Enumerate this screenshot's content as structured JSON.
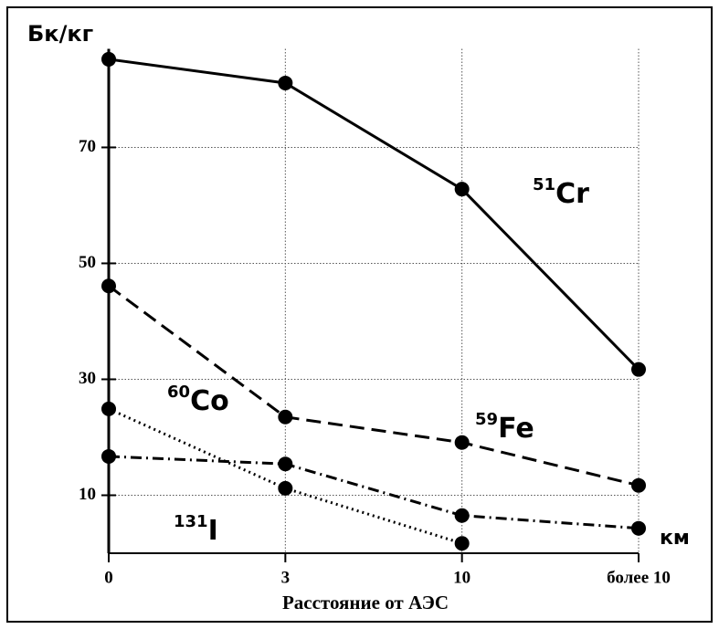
{
  "chart_data": {
    "type": "line",
    "y_label": "Бк/кг",
    "x_label": "Расстояние от АЭС",
    "x_unit": "км",
    "categories": [
      "0",
      "3",
      "10",
      "более 10"
    ],
    "ylim": [
      0,
      87
    ],
    "yticks": [
      10,
      30,
      50,
      70
    ],
    "grid": true,
    "series": [
      {
        "mass": "51",
        "element": "Cr",
        "style": "solid",
        "color": "#000000",
        "values": [
          85.2,
          81.1,
          62.8,
          31.7
        ]
      },
      {
        "mass": "59",
        "element": "Fe",
        "style": "dashed",
        "color": "#000000",
        "values": [
          46.1,
          23.5,
          19.1,
          11.7
        ]
      },
      {
        "mass": "60",
        "element": "Co",
        "style": "dotted",
        "color": "#000000",
        "values": [
          24.9,
          11.2,
          1.7,
          null
        ]
      },
      {
        "mass": "131",
        "element": "I",
        "style": "dashdot",
        "color": "#000000",
        "values": [
          16.7,
          15.4,
          6.5,
          4.3
        ]
      }
    ]
  }
}
